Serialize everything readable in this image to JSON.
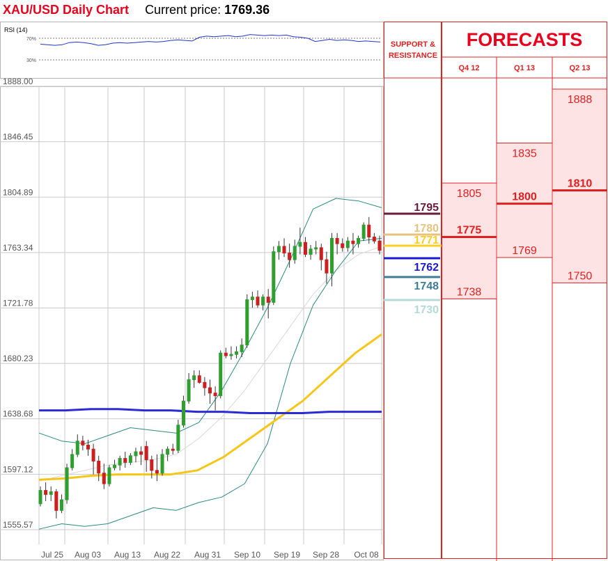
{
  "header": {
    "chart_title": "XAU/USD Daily Chart",
    "price_label": "Current price:",
    "price_value": "1769.36"
  },
  "rsi": {
    "label": "RSI (14)",
    "levels": [
      "70%",
      "30%"
    ],
    "values": [
      59,
      58,
      57,
      58,
      62,
      63,
      62,
      60,
      57,
      58,
      61,
      62,
      61,
      62,
      63,
      64,
      63,
      64,
      66,
      67,
      66,
      65,
      72,
      74,
      73,
      74,
      75,
      73,
      74,
      77,
      76,
      75,
      76,
      75,
      76,
      73,
      72,
      70,
      64,
      66,
      68,
      66,
      67,
      66,
      64,
      65,
      64,
      63
    ]
  },
  "chart_data": {
    "type": "candlestick",
    "title": "XAU/USD Daily Chart",
    "y_ticks": [
      "1888.00",
      "1846.45",
      "1804.89",
      "1763.34",
      "1721.78",
      "1680.23",
      "1638.68",
      "1597.12",
      "1555.57"
    ],
    "ylim": [
      1555.57,
      1888.0
    ],
    "x_labels": [
      "Jul 25",
      "Aug 03",
      "Aug 13",
      "Aug 22",
      "Aug 31",
      "Sep 10",
      "Sep 19",
      "Sep 28",
      "Oct 08"
    ],
    "candles": [
      [
        1575,
        1588,
        1573,
        1585
      ],
      [
        1585,
        1591,
        1577,
        1582
      ],
      [
        1582,
        1588,
        1577,
        1584
      ],
      [
        1584,
        1586,
        1564,
        1570
      ],
      [
        1570,
        1582,
        1568,
        1578
      ],
      [
        1578,
        1605,
        1575,
        1602
      ],
      [
        1602,
        1616,
        1600,
        1612
      ],
      [
        1612,
        1627,
        1610,
        1622
      ],
      [
        1622,
        1626,
        1615,
        1619
      ],
      [
        1619,
        1623,
        1611,
        1616
      ],
      [
        1616,
        1620,
        1597,
        1607
      ],
      [
        1607,
        1611,
        1592,
        1598
      ],
      [
        1598,
        1605,
        1586,
        1590
      ],
      [
        1590,
        1604,
        1588,
        1602
      ],
      [
        1602,
        1608,
        1600,
        1604
      ],
      [
        1604,
        1611,
        1600,
        1609
      ],
      [
        1609,
        1614,
        1602,
        1606
      ],
      [
        1606,
        1613,
        1604,
        1611
      ],
      [
        1611,
        1617,
        1606,
        1614
      ],
      [
        1614,
        1618,
        1604,
        1612
      ],
      [
        1618,
        1622,
        1599,
        1608
      ],
      [
        1608,
        1611,
        1594,
        1600
      ],
      [
        1600,
        1612,
        1592,
        1598
      ],
      [
        1598,
        1616,
        1596,
        1612
      ],
      [
        1612,
        1618,
        1607,
        1616
      ],
      [
        1616,
        1620,
        1612,
        1615
      ],
      [
        1615,
        1638,
        1613,
        1634
      ],
      [
        1634,
        1656,
        1632,
        1652
      ],
      [
        1652,
        1673,
        1650,
        1668
      ],
      [
        1668,
        1675,
        1662,
        1671
      ],
      [
        1671,
        1675,
        1665,
        1666
      ],
      [
        1666,
        1670,
        1656,
        1662
      ],
      [
        1662,
        1668,
        1650,
        1658
      ],
      [
        1658,
        1663,
        1645,
        1656
      ],
      [
        1656,
        1690,
        1654,
        1688
      ],
      [
        1688,
        1692,
        1684,
        1686
      ],
      [
        1686,
        1693,
        1683,
        1687
      ],
      [
        1687,
        1693,
        1684,
        1689
      ],
      [
        1689,
        1699,
        1685,
        1694
      ],
      [
        1694,
        1732,
        1692,
        1728
      ],
      [
        1728,
        1734,
        1722,
        1730
      ],
      [
        1730,
        1735,
        1722,
        1724
      ],
      [
        1724,
        1732,
        1720,
        1730
      ],
      [
        1730,
        1736,
        1714,
        1726
      ],
      [
        1726,
        1768,
        1724,
        1764
      ],
      [
        1764,
        1772,
        1758,
        1768
      ],
      [
        1768,
        1774,
        1760,
        1763
      ],
      [
        1763,
        1770,
        1752,
        1758
      ],
      [
        1758,
        1773,
        1755,
        1768
      ],
      [
        1768,
        1782,
        1762,
        1771
      ],
      [
        1771,
        1775,
        1760,
        1762
      ],
      [
        1762,
        1769,
        1758,
        1766
      ],
      [
        1766,
        1772,
        1762,
        1767
      ],
      [
        1767,
        1770,
        1750,
        1758
      ],
      [
        1758,
        1764,
        1740,
        1748
      ],
      [
        1748,
        1778,
        1738,
        1774
      ],
      [
        1774,
        1778,
        1762,
        1770
      ],
      [
        1770,
        1774,
        1764,
        1767
      ],
      [
        1767,
        1775,
        1764,
        1772
      ],
      [
        1772,
        1778,
        1762,
        1770
      ],
      [
        1770,
        1776,
        1767,
        1774
      ],
      [
        1774,
        1786,
        1772,
        1784
      ],
      [
        1784,
        1790,
        1770,
        1775
      ],
      [
        1775,
        1778,
        1770,
        1772
      ],
      [
        1772,
        1776,
        1762,
        1765
      ]
    ],
    "sma_blue": [
      1645,
      1645,
      1646,
      1646,
      1645,
      1645,
      1644,
      1644,
      1643,
      1643,
      1643,
      1644,
      1644,
      1644
    ],
    "sma_yellow": [
      1593,
      1594,
      1596,
      1597,
      1597,
      1597,
      1600,
      1610,
      1624,
      1638,
      1652,
      1670,
      1688,
      1702
    ],
    "sma_gray": [
      1592,
      1596,
      1600,
      1604,
      1606,
      1608,
      1612,
      1624,
      1640,
      1660,
      1684,
      1708,
      1732,
      1750,
      1762,
      1768
    ],
    "bb_upper": [
      1628,
      1622,
      1620,
      1626,
      1632,
      1630,
      1628,
      1636,
      1660,
      1690,
      1722,
      1758,
      1796,
      1804,
      1802,
      1797
    ],
    "bb_lower": [
      1556,
      1560,
      1558,
      1560,
      1566,
      1572,
      1570,
      1576,
      1580,
      1590,
      1620,
      1680,
      1724,
      1750,
      1772,
      1774
    ],
    "support_resistance": [
      {
        "value": "1795",
        "color": "#6b1a3c"
      },
      {
        "value": "1780",
        "color": "#e6c27e"
      },
      {
        "value": "1771",
        "color": "#ffcc22"
      },
      {
        "value": "1762",
        "color": "#1a1ad6"
      },
      {
        "value": "1748",
        "color": "#3f7c96"
      },
      {
        "value": "1730",
        "color": "#b4d9d9"
      }
    ],
    "forecasts": [
      {
        "quarter": "Q4 12",
        "high": "1805",
        "mid": "1775",
        "low": "1738"
      },
      {
        "quarter": "Q1 13",
        "high": "1835",
        "mid": "1800",
        "low": "1769"
      },
      {
        "quarter": "Q2 13",
        "high": "1888",
        "mid": "1810",
        "low": "1750"
      }
    ]
  },
  "panel": {
    "support_label_line1": "SUPPORT &",
    "support_label_line2": "RESISTANCE",
    "forecasts_title": "FORECASTS"
  }
}
